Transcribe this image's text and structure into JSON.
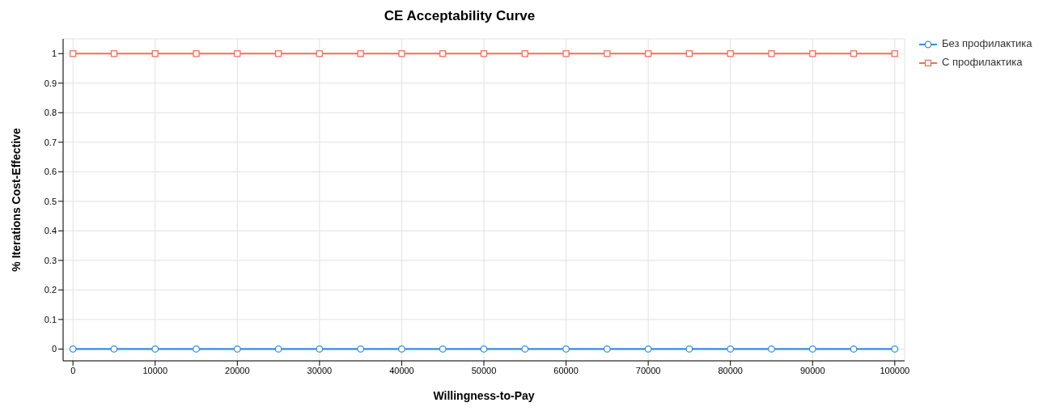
{
  "chart_data": {
    "type": "line",
    "title": "CE Acceptability Curve",
    "xlabel": "Willingness-to-Pay",
    "ylabel": "% Iterations Cost-Effective",
    "x": [
      0,
      5000,
      10000,
      15000,
      20000,
      25000,
      30000,
      35000,
      40000,
      45000,
      50000,
      55000,
      60000,
      65000,
      70000,
      75000,
      80000,
      85000,
      90000,
      95000,
      100000
    ],
    "series": [
      {
        "name": "Без профилактика",
        "color": "#2e8ff0",
        "marker": "circle",
        "values": [
          0,
          0,
          0,
          0,
          0,
          0,
          0,
          0,
          0,
          0,
          0,
          0,
          0,
          0,
          0,
          0,
          0,
          0,
          0,
          0,
          0
        ]
      },
      {
        "name": "С профилактика",
        "color": "#f4705c",
        "marker": "square",
        "values": [
          1,
          1,
          1,
          1,
          1,
          1,
          1,
          1,
          1,
          1,
          1,
          1,
          1,
          1,
          1,
          1,
          1,
          1,
          1,
          1,
          1
        ]
      }
    ],
    "xlim": [
      -1200,
      101200
    ],
    "xticks": [
      0,
      10000,
      20000,
      30000,
      40000,
      50000,
      60000,
      70000,
      80000,
      90000,
      100000
    ],
    "ylim": [
      -0.04,
      1.05
    ],
    "yticks": [
      0,
      0.1,
      0.2,
      0.3,
      0.4,
      0.5,
      0.6,
      0.7,
      0.8,
      0.9,
      1
    ],
    "grid": true,
    "legend": "top right",
    "line_style": "solid"
  }
}
